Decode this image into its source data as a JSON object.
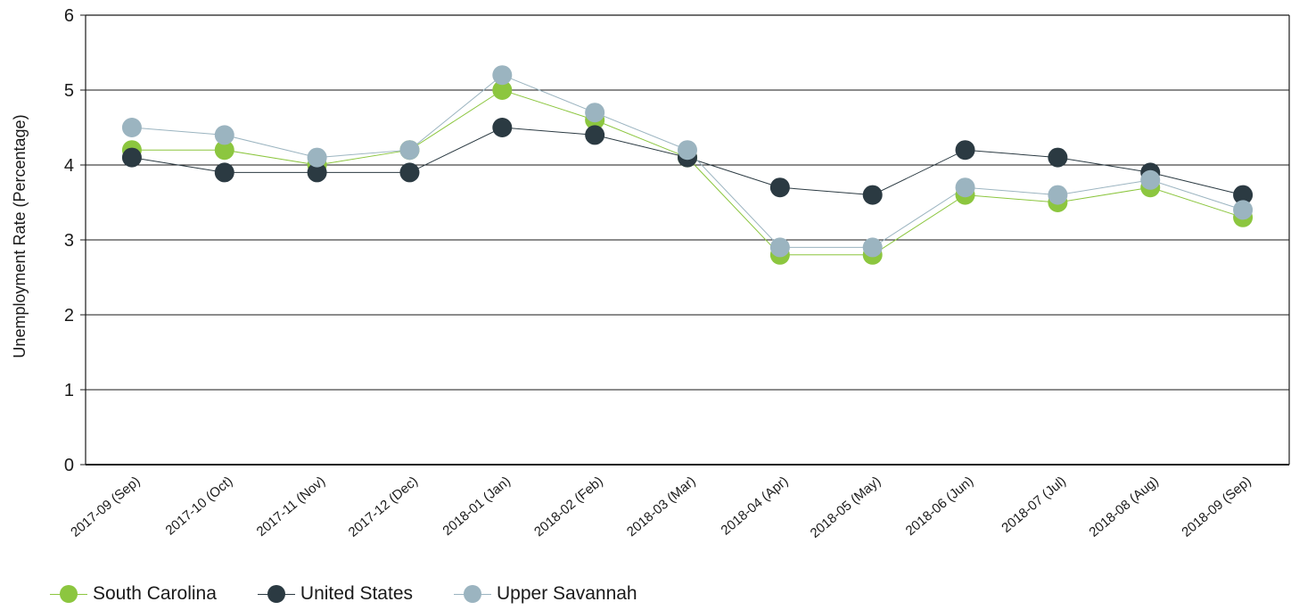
{
  "chart_data": {
    "type": "line",
    "ylabel": "Unemployment Rate (Percentage)",
    "xlabel": "",
    "ylim": [
      0,
      6
    ],
    "yticks": [
      0,
      1,
      2,
      3,
      4,
      5,
      6
    ],
    "grid": true,
    "legend_position": "bottom-left",
    "categories": [
      "2017-09 (Sep)",
      "2017-10 (Oct)",
      "2017-11 (Nov)",
      "2017-12 (Dec)",
      "2018-01 (Jan)",
      "2018-02 (Feb)",
      "2018-03 (Mar)",
      "2018-04 (Apr)",
      "2018-05 (May)",
      "2018-06 (Jun)",
      "2018-07 (Jul)",
      "2018-08 (Aug)",
      "2018-09 (Sep)"
    ],
    "series": [
      {
        "name": "South Carolina",
        "color": "#8cc63f",
        "values": [
          4.2,
          4.2,
          4.0,
          4.2,
          5.0,
          4.6,
          4.1,
          2.8,
          2.8,
          3.6,
          3.5,
          3.7,
          3.3
        ]
      },
      {
        "name": "United States",
        "color": "#2b3a42",
        "values": [
          4.1,
          3.9,
          3.9,
          3.9,
          4.5,
          4.4,
          4.1,
          3.7,
          3.6,
          4.2,
          4.1,
          3.9,
          3.6
        ]
      },
      {
        "name": "Upper Savannah",
        "color": "#9bb4c0",
        "values": [
          4.5,
          4.4,
          4.1,
          4.2,
          5.2,
          4.7,
          4.2,
          2.9,
          2.9,
          3.7,
          3.6,
          3.8,
          3.4
        ]
      }
    ]
  }
}
